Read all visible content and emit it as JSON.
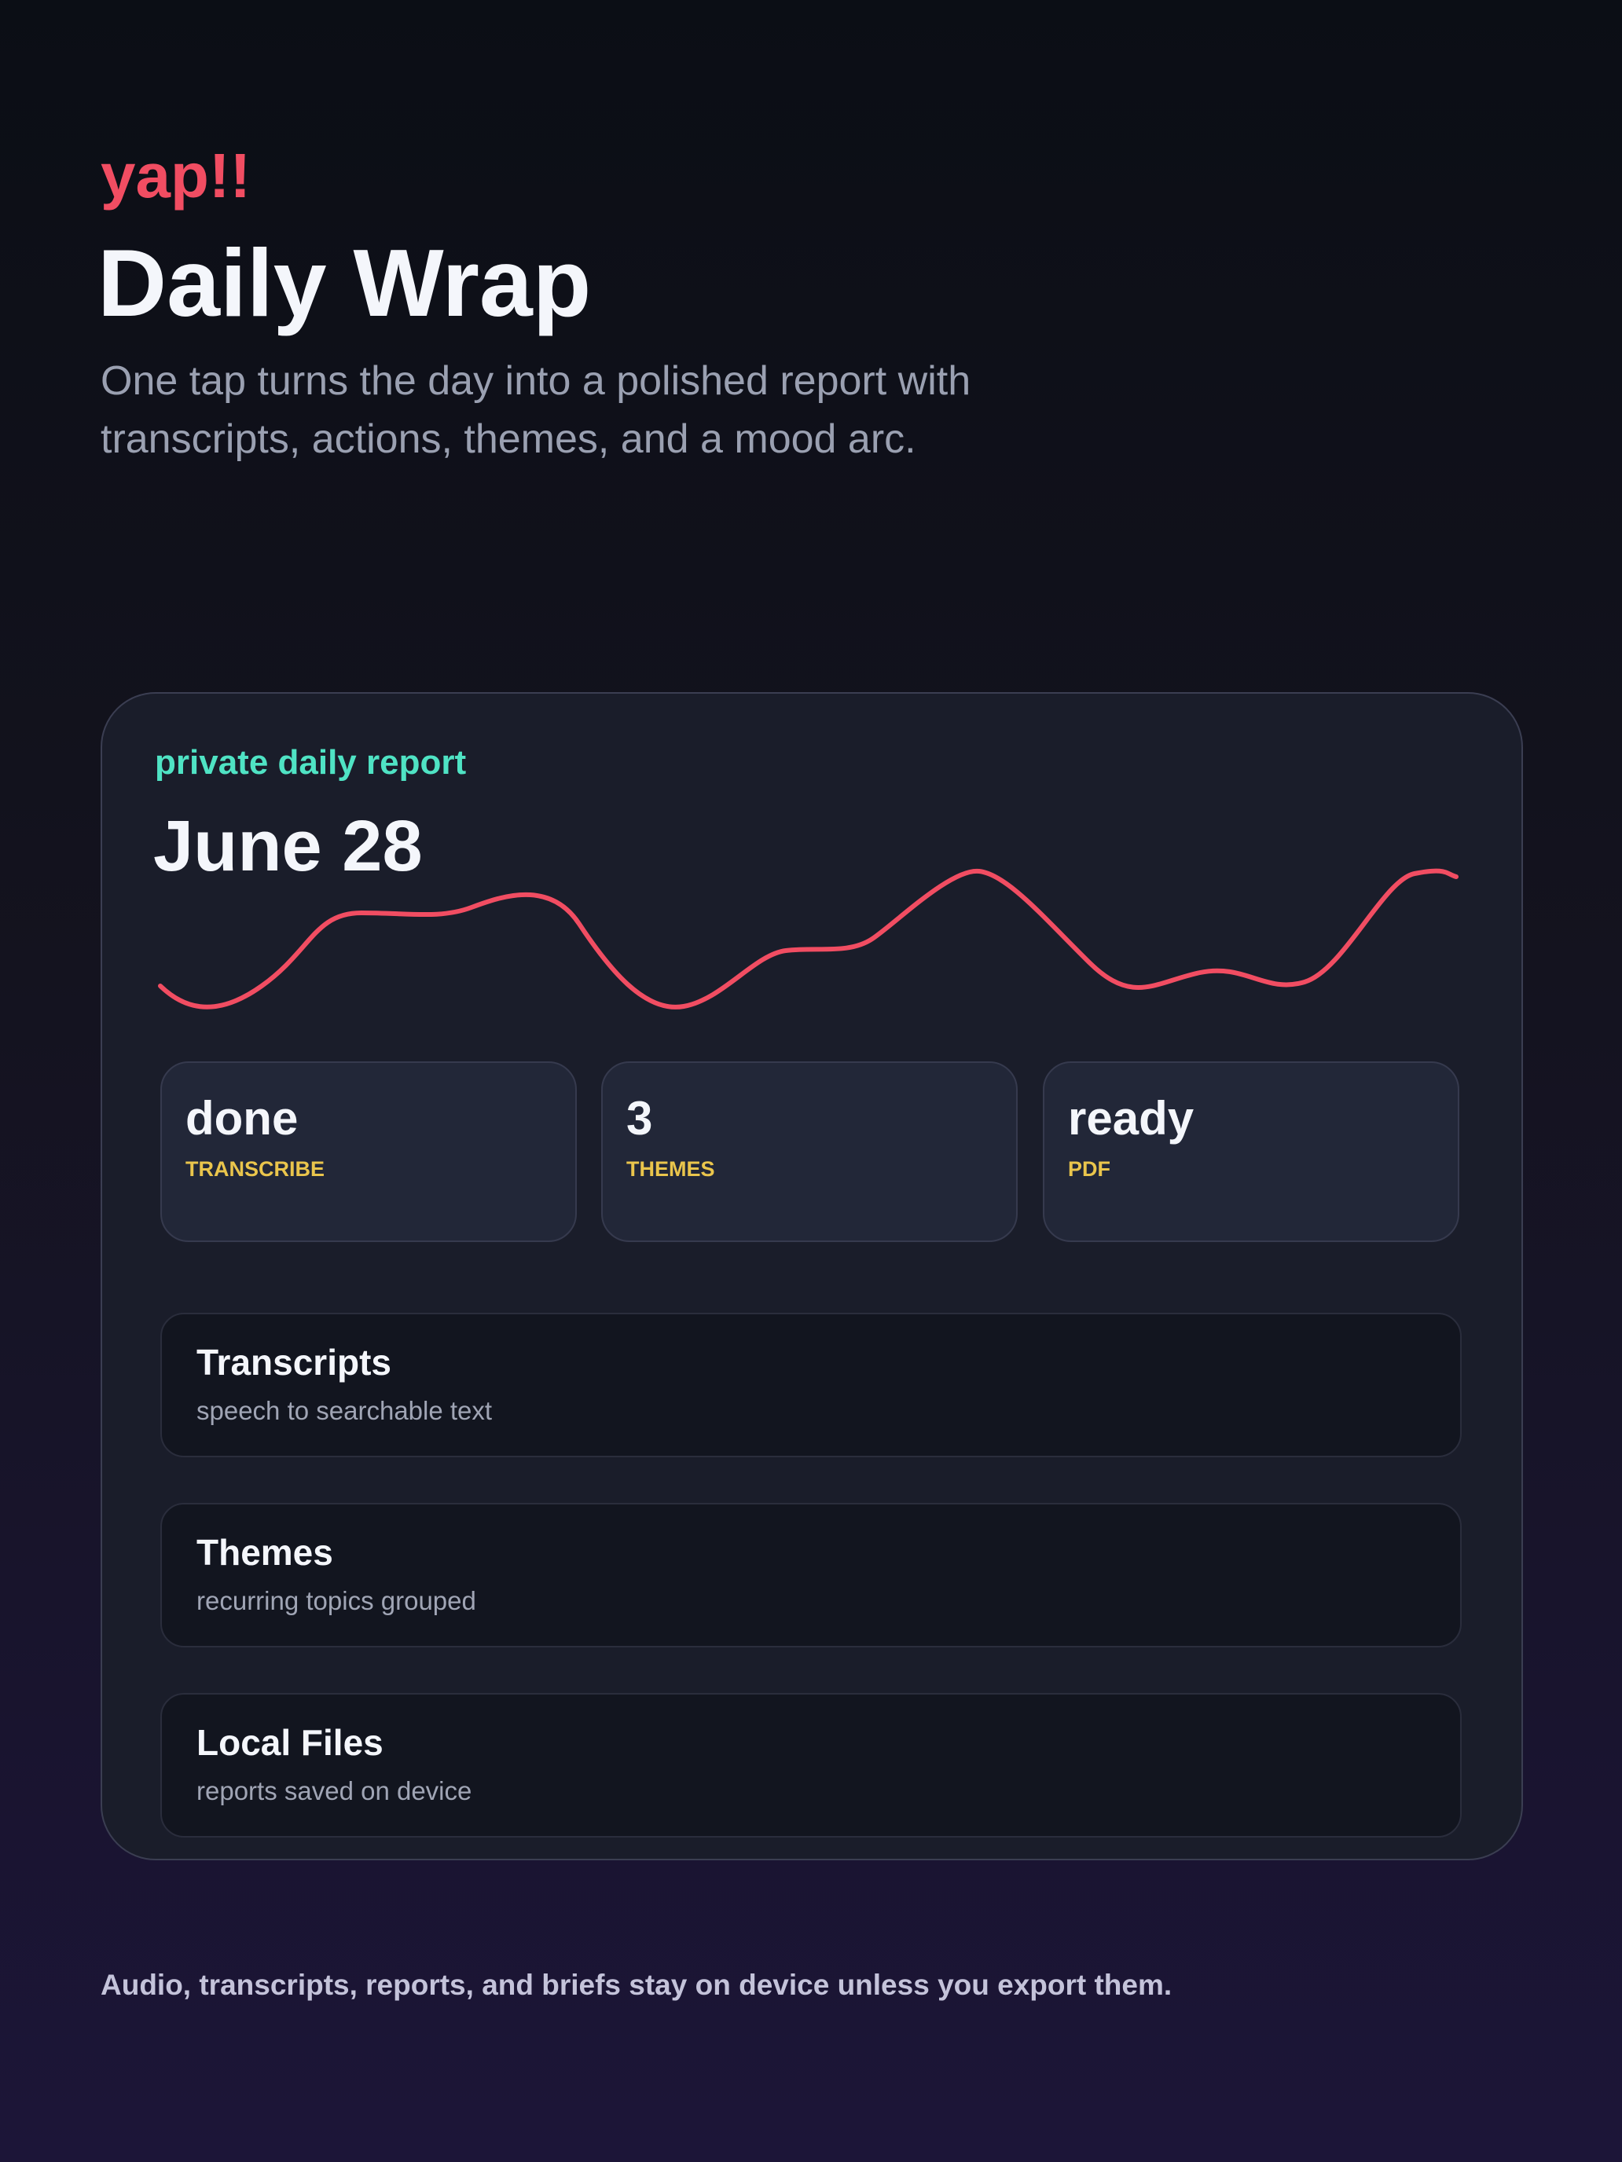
{
  "header": {
    "brand": "yap!!",
    "title": "Daily Wrap",
    "subtitle": "One tap turns the day into a polished report with transcripts, actions, themes, and a mood arc."
  },
  "card": {
    "label": "private daily report",
    "date": "June 28",
    "stats": [
      {
        "value": "done",
        "label": "TRANSCRIBE"
      },
      {
        "value": "3",
        "label": "THEMES"
      },
      {
        "value": "ready",
        "label": "PDF"
      }
    ],
    "items": [
      {
        "title": "Transcripts",
        "description": "speech to searchable text"
      },
      {
        "title": "Themes",
        "description": "recurring topics grouped"
      },
      {
        "title": "Local Files",
        "description": "reports saved on device"
      }
    ]
  },
  "footer": "Audio, transcripts, reports, and briefs stay on device unless you export them."
}
